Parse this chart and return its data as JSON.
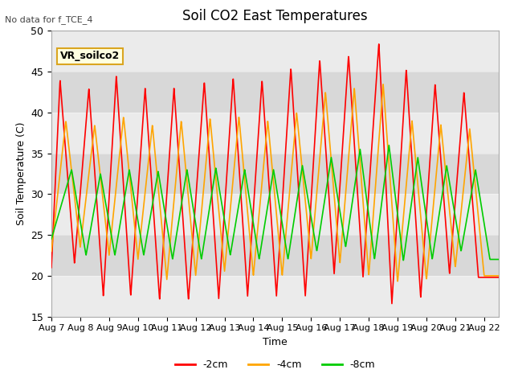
{
  "title": "Soil CO2 East Temperatures",
  "no_data_text": "No data for f_TCE_4",
  "vr_label": "VR_soilco2",
  "ylabel": "Soil Temperature (C)",
  "xlabel": "Time",
  "ylim": [
    15,
    50
  ],
  "xlim": [
    0,
    15.5
  ],
  "yticks": [
    15,
    20,
    25,
    30,
    35,
    40,
    45,
    50
  ],
  "xtick_labels": [
    "Aug 7",
    "Aug 8",
    "Aug 9",
    "Aug 10",
    "Aug 11",
    "Aug 12",
    "Aug 13",
    "Aug 14",
    "Aug 15",
    "Aug 16",
    "Aug 17",
    "Aug 18",
    "Aug 19",
    "Aug 20",
    "Aug 21",
    "Aug 22"
  ],
  "legend_labels": [
    "-2cm",
    "-4cm",
    "-8cm"
  ],
  "colors": {
    "red": "#ff0000",
    "orange": "#ffa500",
    "green": "#00cc00"
  },
  "bg_color": "#e0e0e0",
  "band_light": "#ebebeb",
  "band_dark": "#d8d8d8"
}
